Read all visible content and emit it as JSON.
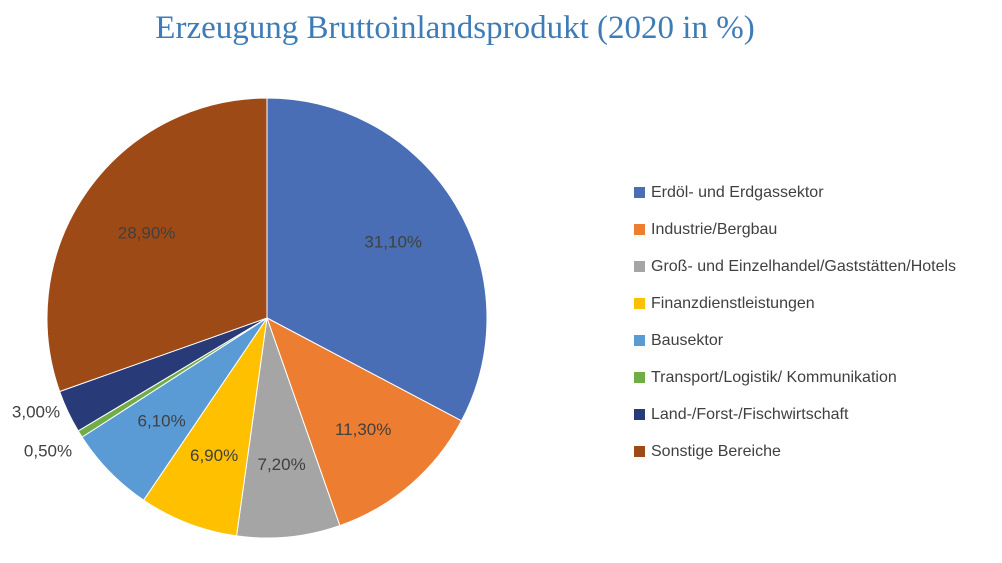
{
  "chart_data": {
    "type": "pie",
    "title": "Erzeugung Bruttoinlandsprodukt (2020 in %)",
    "slices": [
      {
        "label": "Erdöl- und Erdgassektor",
        "value": 31.1,
        "display": "31,10%",
        "color": "#4A6EB5"
      },
      {
        "label": "Industrie/Bergbau",
        "value": 11.3,
        "display": "11,30%",
        "color": "#ED7D31"
      },
      {
        "label": "Groß- und Einzelhandel/Gaststätten/Hotels",
        "value": 7.2,
        "display": "7,20%",
        "color": "#A5A5A5"
      },
      {
        "label": "Finanzdienstleistungen",
        "value": 6.9,
        "display": "6,90%",
        "color": "#FFC000"
      },
      {
        "label": "Bausektor",
        "value": 6.1,
        "display": "6,10%",
        "color": "#5B9BD5"
      },
      {
        "label": "Transport/Logistik/ Kommunikation",
        "value": 0.5,
        "display": "0,50%",
        "color": "#70AD47"
      },
      {
        "label": "Land-/Forst-/Fischwirtschaft",
        "value": 3.0,
        "display": "3,00%",
        "color": "#283A78"
      },
      {
        "label": "Sonstige Bereiche",
        "value": 28.9,
        "display": "28,90%",
        "color": "#9E4A16"
      }
    ],
    "legend_position": "right"
  }
}
